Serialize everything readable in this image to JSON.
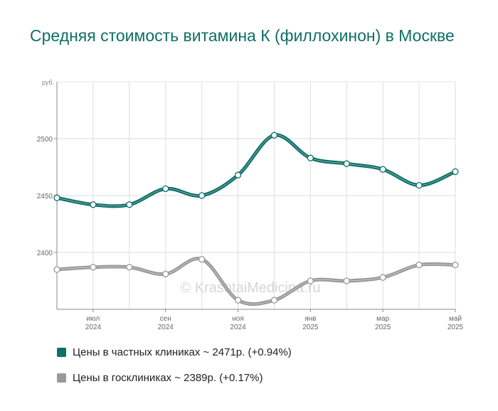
{
  "page": {
    "title": "Средняя стоимость витамина К (филлохинон) в Москве"
  },
  "watermark": "© KrasotaiMedicina.ru",
  "legend": [
    {
      "label": "Цены в частных клиниках ~ 2471р. (+0.94%)",
      "color": "#0e6f66"
    },
    {
      "label": "Цены в госклиниках ~ 2389р. (+0.17%)",
      "color": "#999999"
    }
  ],
  "chart_data": {
    "type": "line",
    "title": "Средняя стоимость витамина К (филлохинон) в Москве",
    "ylabel": "руб.",
    "xlabel": "",
    "ylim": [
      2350,
      2550
    ],
    "yticks": [
      2400,
      2450,
      2500
    ],
    "grid": true,
    "legend_position": "bottom",
    "x": [
      "2024-06",
      "2024-07",
      "2024-08",
      "2024-09",
      "2024-10",
      "2024-11",
      "2024-12",
      "2025-01",
      "2025-02",
      "2025-03",
      "2025-04",
      "2025-05"
    ],
    "x_tick_labels": [
      {
        "index": 1,
        "month": "июл",
        "year": "2024"
      },
      {
        "index": 3,
        "month": "сен",
        "year": "2024"
      },
      {
        "index": 5,
        "month": "ноя",
        "year": "2024"
      },
      {
        "index": 7,
        "month": "янв",
        "year": "2025"
      },
      {
        "index": 9,
        "month": "мар",
        "year": "2025"
      },
      {
        "index": 11,
        "month": "май",
        "year": "2025"
      }
    ],
    "series": [
      {
        "name": "Цены в частных клиниках ~ 2471р. (+0.94%)",
        "color": "#0e6f66",
        "values": [
          2448,
          2442,
          2442,
          2456,
          2450,
          2468,
          2503,
          2483,
          2478,
          2473,
          2459,
          2471
        ]
      },
      {
        "name": "Цены в госклиниках ~ 2389р. (+0.17%)",
        "color": "#999999",
        "values": [
          2385,
          2387,
          2387,
          2381,
          2394,
          2358,
          2358,
          2375,
          2375,
          2378,
          2389,
          2389
        ]
      }
    ]
  }
}
